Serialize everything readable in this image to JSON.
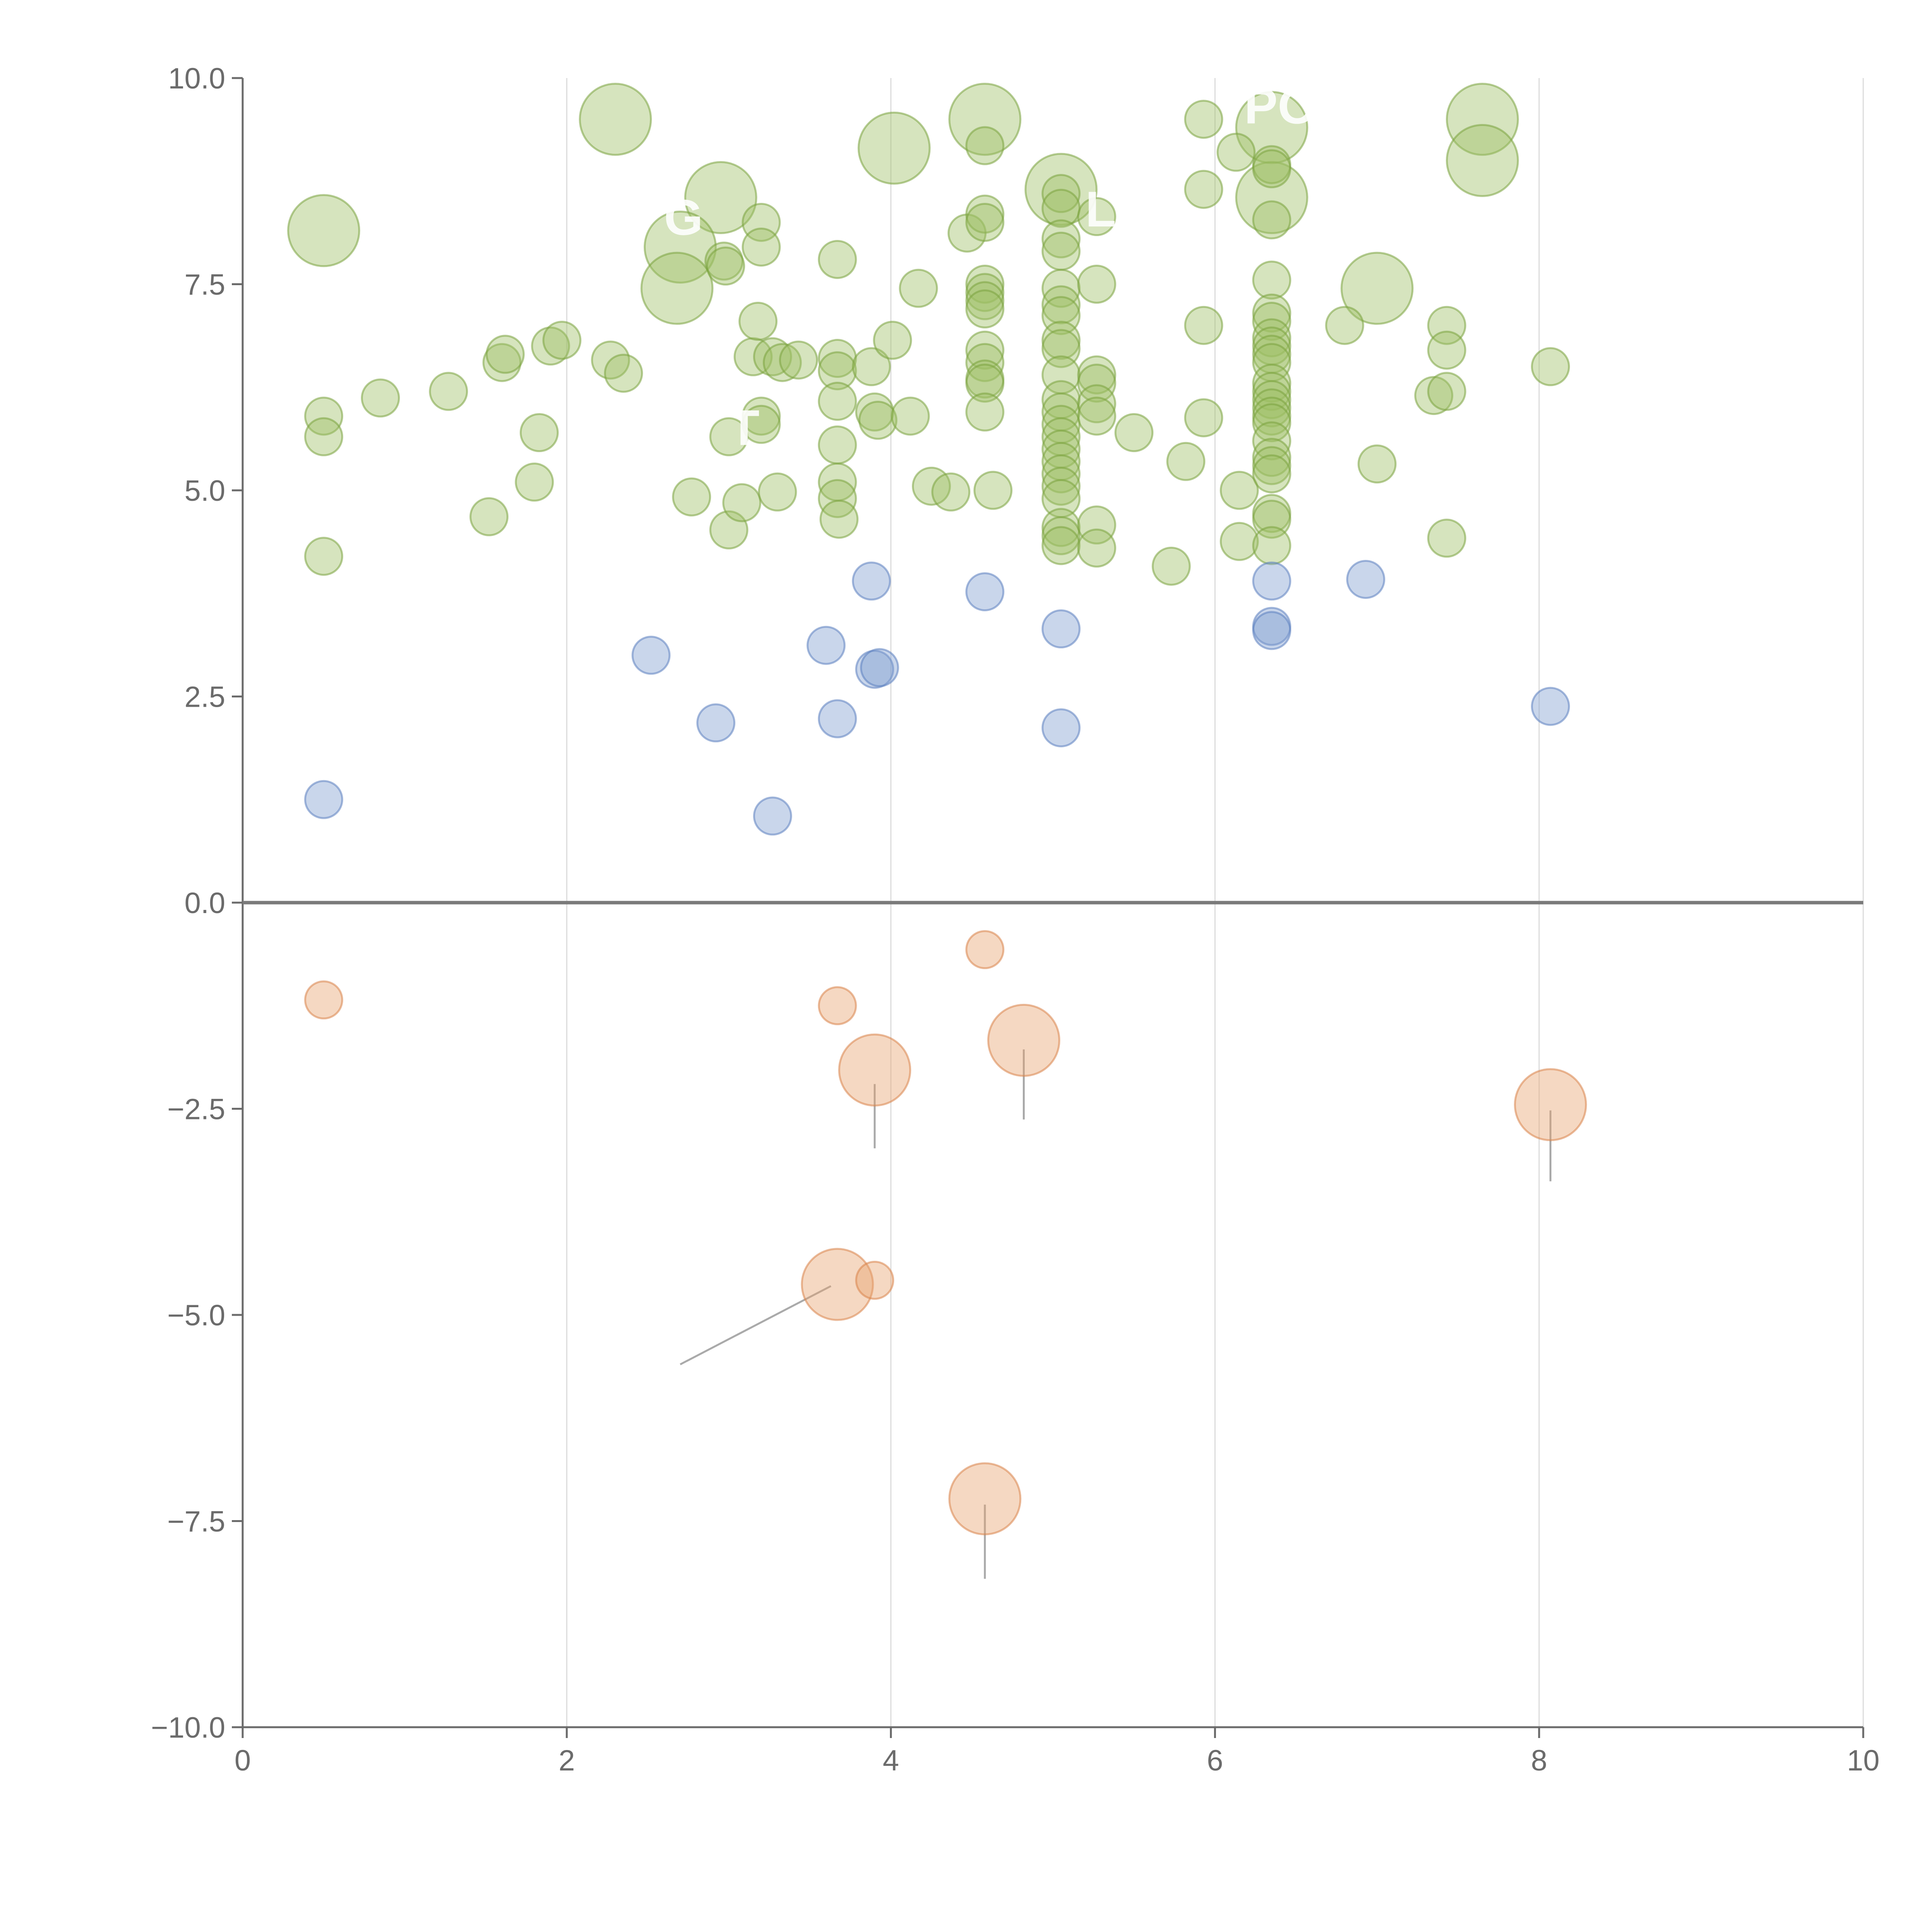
{
  "chart_data": {
    "type": "scatter",
    "title": "",
    "xlabel": "",
    "ylabel": "",
    "xlim": [
      0,
      10
    ],
    "ylim": [
      -10,
      10
    ],
    "x_ticks": [
      0,
      2,
      4,
      6,
      8,
      10
    ],
    "x_tick_labels": [
      "0",
      "2",
      "4",
      "6",
      "8",
      "10"
    ],
    "y_ticks": [
      -10,
      -7.5,
      -5,
      -2.5,
      0,
      2.5,
      5,
      7.5,
      10
    ],
    "y_tick_labels": [
      "−10.0",
      "−7.5",
      "−5.0",
      "−2.5",
      "0.0",
      "2.5",
      "5.0",
      "7.5",
      "10.0"
    ],
    "vertical_grid": true,
    "zero_line": true,
    "legend": "none",
    "colors": {
      "green_fill": "#9dbf63",
      "green_stroke": "#7aa23e",
      "blue_fill": "#7f9ecf",
      "blue_stroke": "#5b7fbf",
      "orange_fill": "#e8a36e",
      "orange_stroke": "#d9844a",
      "axis": "#6b6b6b",
      "grid": "#dcdcdc",
      "zero_line": "#7a7a7a",
      "leader_line": "#aaaaaa"
    },
    "series": [
      {
        "color": "green",
        "points": [
          [
            0.5,
            8.15,
            3
          ],
          [
            2.3,
            9.5,
            3
          ],
          [
            2.95,
            8.55,
            3
          ],
          [
            2.7,
            7.95,
            3
          ],
          [
            2.68,
            7.45,
            3
          ],
          [
            4.02,
            9.15,
            3
          ],
          [
            4.58,
            9.5,
            3
          ],
          [
            5.05,
            8.65,
            3
          ],
          [
            6.35,
            9.4,
            3
          ],
          [
            6.35,
            8.55,
            3
          ],
          [
            7.65,
            9.5,
            3
          ],
          [
            7.65,
            9.0,
            3
          ],
          [
            7.0,
            7.45,
            3
          ],
          [
            0.5,
            5.9,
            1
          ],
          [
            0.5,
            5.65,
            1
          ],
          [
            0.5,
            4.2,
            1
          ],
          [
            0.85,
            6.12,
            1
          ],
          [
            1.27,
            6.2,
            1
          ],
          [
            1.52,
            4.68,
            1
          ],
          [
            1.6,
            6.55,
            1
          ],
          [
            1.62,
            6.65,
            1
          ],
          [
            1.8,
            5.1,
            1
          ],
          [
            1.83,
            5.7,
            1
          ],
          [
            1.9,
            6.75,
            1
          ],
          [
            1.97,
            6.82,
            1
          ],
          [
            2.27,
            6.58,
            1
          ],
          [
            2.35,
            6.42,
            1
          ],
          [
            2.77,
            4.92,
            1
          ],
          [
            2.97,
            7.78,
            1
          ],
          [
            2.98,
            7.72,
            1
          ],
          [
            3.0,
            4.52,
            1
          ],
          [
            3.0,
            5.65,
            1
          ],
          [
            3.08,
            4.85,
            1
          ],
          [
            3.15,
            6.62,
            1
          ],
          [
            3.18,
            7.05,
            1
          ],
          [
            3.2,
            5.9,
            1
          ],
          [
            3.2,
            5.8,
            1
          ],
          [
            3.2,
            8.25,
            1
          ],
          [
            3.2,
            7.95,
            1
          ],
          [
            3.27,
            6.62,
            1
          ],
          [
            3.33,
            6.55,
            1
          ],
          [
            3.3,
            4.98,
            1
          ],
          [
            3.43,
            6.58,
            1
          ],
          [
            3.67,
            7.8,
            1
          ],
          [
            3.67,
            6.6,
            1
          ],
          [
            3.67,
            6.45,
            1
          ],
          [
            3.67,
            6.08,
            1
          ],
          [
            3.67,
            5.55,
            1
          ],
          [
            3.67,
            5.1,
            1
          ],
          [
            3.67,
            4.9,
            1
          ],
          [
            3.68,
            4.65,
            1
          ],
          [
            3.88,
            6.5,
            1
          ],
          [
            3.9,
            5.95,
            1
          ],
          [
            3.92,
            5.85,
            1
          ],
          [
            4.01,
            6.82,
            1
          ],
          [
            4.12,
            5.9,
            1
          ],
          [
            4.17,
            7.45,
            1
          ],
          [
            4.25,
            5.05,
            1
          ],
          [
            4.37,
            4.98,
            1
          ],
          [
            4.47,
            8.12,
            1
          ],
          [
            4.58,
            8.35,
            1
          ],
          [
            4.58,
            8.25,
            1
          ],
          [
            4.58,
            9.18,
            1
          ],
          [
            4.58,
            7.5,
            1
          ],
          [
            4.58,
            7.4,
            1
          ],
          [
            4.58,
            7.3,
            1
          ],
          [
            4.58,
            7.2,
            1
          ],
          [
            4.58,
            6.7,
            1
          ],
          [
            4.58,
            6.55,
            1
          ],
          [
            4.58,
            6.35,
            1
          ],
          [
            4.58,
            6.3,
            1
          ],
          [
            4.58,
            5.95,
            1
          ],
          [
            4.63,
            5.0,
            1
          ],
          [
            5.05,
            8.6,
            1
          ],
          [
            5.05,
            8.42,
            1
          ],
          [
            5.05,
            8.05,
            1
          ],
          [
            5.05,
            7.9,
            1
          ],
          [
            5.05,
            7.45,
            1
          ],
          [
            5.05,
            7.25,
            1
          ],
          [
            5.05,
            7.12,
            1
          ],
          [
            5.05,
            6.82,
            1
          ],
          [
            5.05,
            6.72,
            1
          ],
          [
            5.05,
            6.4,
            1
          ],
          [
            5.05,
            6.1,
            1
          ],
          [
            5.05,
            5.95,
            1
          ],
          [
            5.05,
            5.8,
            1
          ],
          [
            5.05,
            5.65,
            1
          ],
          [
            5.05,
            5.5,
            1
          ],
          [
            5.05,
            5.35,
            1
          ],
          [
            5.05,
            5.2,
            1
          ],
          [
            5.05,
            5.05,
            1
          ],
          [
            5.05,
            4.9,
            1
          ],
          [
            5.05,
            4.55,
            1
          ],
          [
            5.05,
            4.45,
            1
          ],
          [
            5.05,
            4.33,
            1
          ],
          [
            5.27,
            8.32,
            1
          ],
          [
            5.27,
            7.5,
            1
          ],
          [
            5.27,
            6.4,
            1
          ],
          [
            5.27,
            6.3,
            1
          ],
          [
            5.27,
            6.05,
            1
          ],
          [
            5.27,
            5.9,
            1
          ],
          [
            5.27,
            4.58,
            1
          ],
          [
            5.27,
            4.3,
            1
          ],
          [
            5.5,
            5.7,
            1
          ],
          [
            5.73,
            4.08,
            1
          ],
          [
            5.82,
            5.35,
            1
          ],
          [
            5.93,
            9.5,
            1
          ],
          [
            5.93,
            8.65,
            1
          ],
          [
            5.93,
            7.0,
            1
          ],
          [
            5.93,
            5.88,
            1
          ],
          [
            6.13,
            9.1,
            1
          ],
          [
            6.15,
            5.0,
            1
          ],
          [
            6.15,
            4.38,
            1
          ],
          [
            6.35,
            8.95,
            1
          ],
          [
            6.35,
            8.9,
            1
          ],
          [
            6.35,
            8.28,
            1
          ],
          [
            6.35,
            7.55,
            1
          ],
          [
            6.35,
            7.15,
            1
          ],
          [
            6.35,
            7.05,
            1
          ],
          [
            6.35,
            6.85,
            1
          ],
          [
            6.35,
            6.75,
            1
          ],
          [
            6.35,
            6.65,
            1
          ],
          [
            6.35,
            6.55,
            1
          ],
          [
            6.35,
            6.3,
            1
          ],
          [
            6.35,
            6.2,
            1
          ],
          [
            6.35,
            6.1,
            1
          ],
          [
            6.35,
            6.0,
            1
          ],
          [
            6.35,
            5.9,
            1
          ],
          [
            6.35,
            5.82,
            1
          ],
          [
            6.35,
            5.6,
            1
          ],
          [
            6.35,
            5.4,
            1
          ],
          [
            6.35,
            5.3,
            1
          ],
          [
            6.35,
            5.2,
            1
          ],
          [
            6.35,
            4.72,
            1
          ],
          [
            6.35,
            4.65,
            1
          ],
          [
            6.35,
            4.33,
            1
          ],
          [
            6.8,
            7.0,
            1
          ],
          [
            7.0,
            5.32,
            1
          ],
          [
            7.35,
            6.15,
            1
          ],
          [
            7.43,
            7.0,
            1
          ],
          [
            7.43,
            6.7,
            1
          ],
          [
            7.43,
            6.2,
            1
          ],
          [
            7.43,
            4.42,
            1
          ],
          [
            8.07,
            6.5,
            1
          ]
        ]
      },
      {
        "color": "blue",
        "points": [
          [
            0.5,
            1.25,
            1
          ],
          [
            2.52,
            3.0,
            1
          ],
          [
            2.92,
            2.18,
            1
          ],
          [
            3.27,
            1.05,
            1
          ],
          [
            3.6,
            3.12,
            1
          ],
          [
            3.67,
            2.23,
            1
          ],
          [
            3.88,
            3.9,
            1
          ],
          [
            3.9,
            2.83,
            1
          ],
          [
            3.93,
            2.85,
            1
          ],
          [
            4.58,
            3.77,
            1
          ],
          [
            5.05,
            3.32,
            1
          ],
          [
            5.05,
            2.12,
            1
          ],
          [
            6.35,
            3.9,
            1
          ],
          [
            6.35,
            3.35,
            1
          ],
          [
            6.35,
            3.3,
            1
          ],
          [
            6.93,
            3.92,
            1
          ],
          [
            8.07,
            2.38,
            1
          ]
        ]
      },
      {
        "color": "orange",
        "points": [
          [
            0.5,
            -1.18,
            1
          ],
          [
            3.67,
            -1.25,
            1
          ],
          [
            4.58,
            -0.57,
            1
          ],
          [
            3.9,
            -2.03,
            3
          ],
          [
            4.82,
            -1.67,
            3
          ],
          [
            8.07,
            -2.45,
            3
          ],
          [
            3.67,
            -4.63,
            3
          ],
          [
            3.9,
            -4.58,
            1
          ],
          [
            4.58,
            -7.23,
            3
          ]
        ]
      }
    ],
    "leader_lines": [
      [
        3.9,
        -2.2,
        3.9,
        -2.98
      ],
      [
        4.82,
        -1.78,
        4.82,
        -2.63
      ],
      [
        8.07,
        -2.52,
        8.07,
        -3.38
      ],
      [
        3.63,
        -4.65,
        2.7,
        -5.6
      ],
      [
        4.58,
        -7.3,
        4.58,
        -8.2
      ]
    ],
    "labels": [
      {
        "text": "G",
        "x": 2.6,
        "y": 8.1
      },
      {
        "text": "T",
        "x": 3.0,
        "y": 5.55
      },
      {
        "text": "L",
        "x": 5.2,
        "y": 8.2
      },
      {
        "text": "PO",
        "x": 6.18,
        "y": 9.45
      }
    ]
  }
}
